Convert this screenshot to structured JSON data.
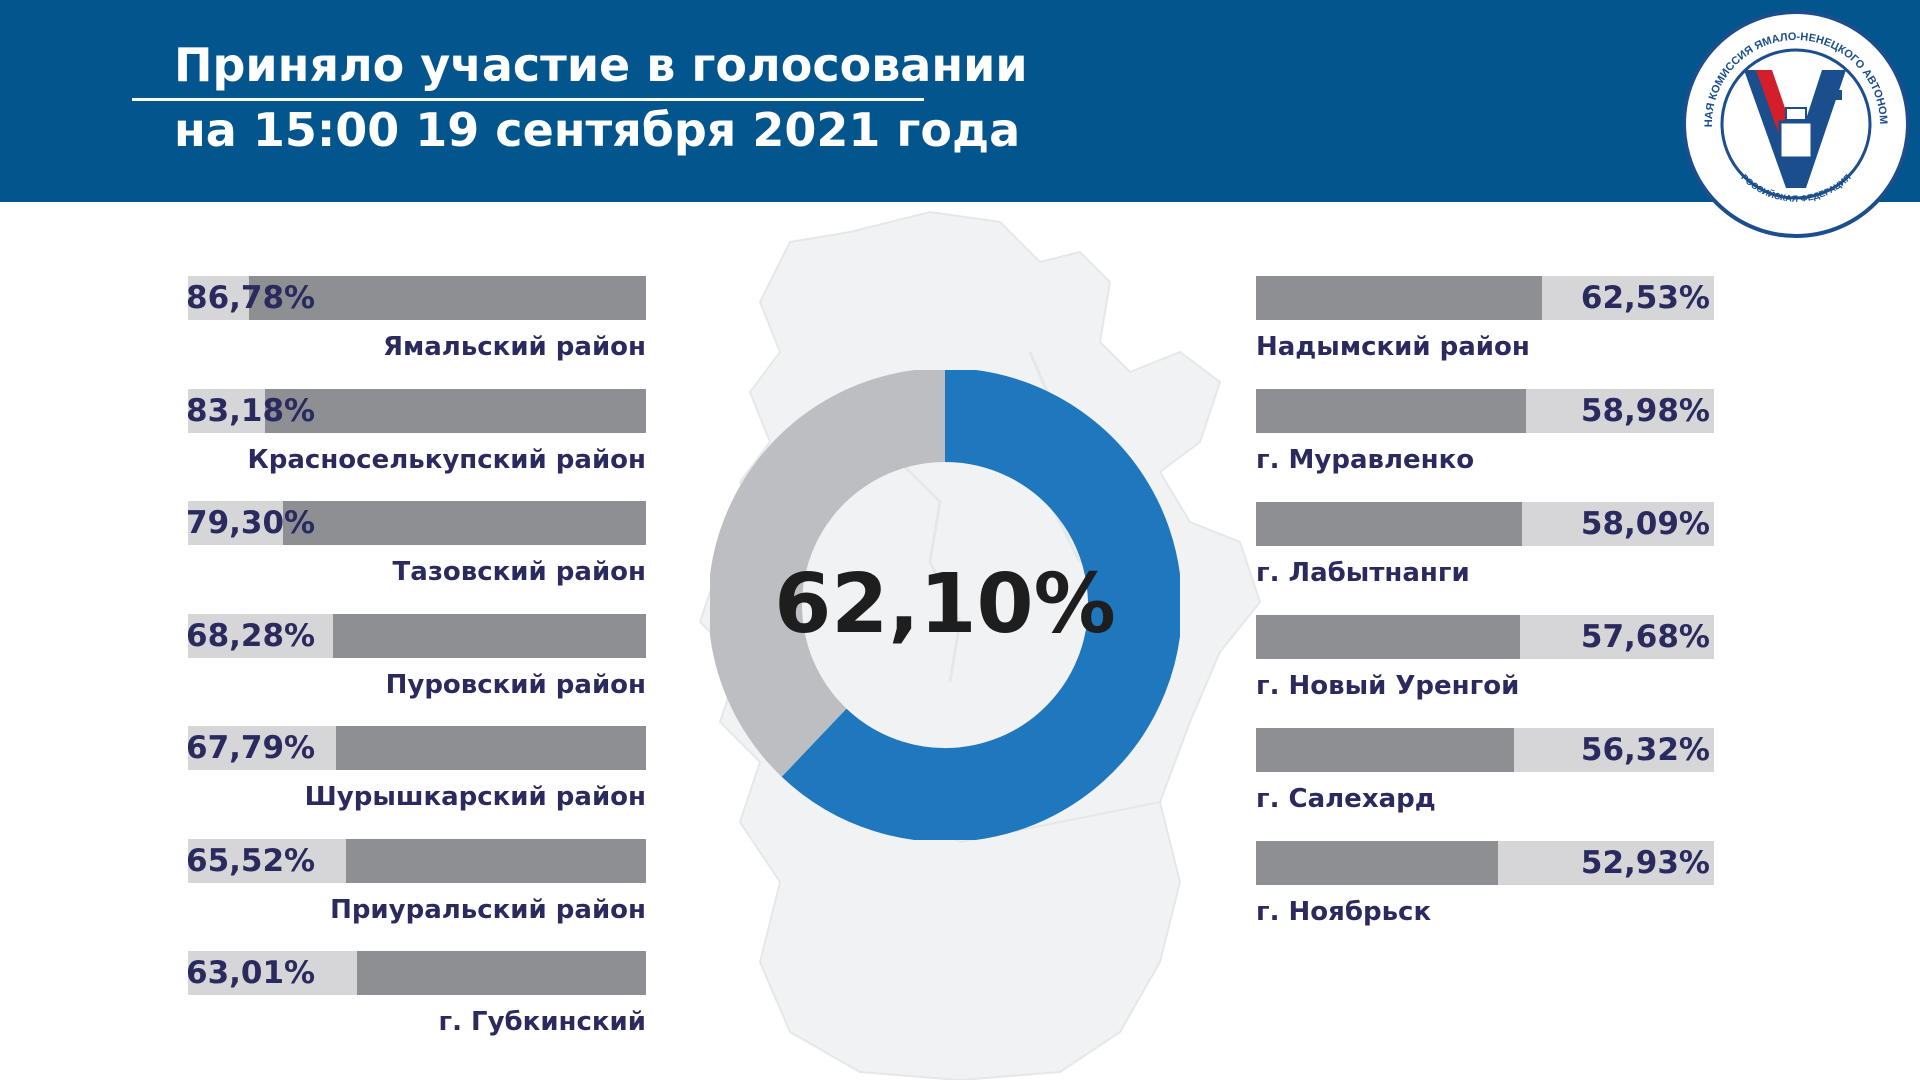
{
  "header": {
    "title_line1": "Приняло участие в голосовании",
    "title_line2": "на 15:00 19 сентября 2021 года"
  },
  "logo": {
    "ring_text_top": "ИЗБИРАТЕЛЬНАЯ КОМИССИЯ ЯМАЛО-НЕНЕЦКОГО АВТОНОМНОГО ОКРУГА",
    "ring_text_bottom": "РОССИЙСКАЯ ФЕДЕРАЦИЯ"
  },
  "colors": {
    "header_bg": "#02558d",
    "donut_blue": "#1f77be",
    "donut_grey": "#bdbec1",
    "bar_track": "#d6d6d8",
    "bar_fill": "#8e8f93",
    "text_dark": "#2b2a5e"
  },
  "chart_data": [
    {
      "type": "pie",
      "variant": "donut",
      "center_label": "62,10%",
      "values": [
        62.1,
        37.9
      ]
    },
    {
      "type": "bar",
      "orientation": "horizontal",
      "categories": [
        "Ямальский район",
        "Красноселькупский район",
        "Тазовский район",
        "Пуровский район",
        "Шурышкарский район",
        "Приуральский район",
        "г. Губкинский"
      ],
      "values": [
        86.78,
        83.18,
        79.3,
        68.28,
        67.79,
        65.52,
        63.01
      ],
      "value_labels": [
        "86,78%",
        "83,18%",
        "79,30%",
        "68,28%",
        "67,79%",
        "65,52%",
        "63,01%"
      ]
    },
    {
      "type": "bar",
      "orientation": "horizontal",
      "categories": [
        "Надымский район",
        "г. Муравленко",
        "г. Лабытнанги",
        "г. Новый Уренгой",
        "г. Салехард",
        "г. Ноябрьск"
      ],
      "values": [
        62.53,
        58.98,
        58.09,
        57.68,
        56.32,
        52.93
      ],
      "value_labels": [
        "62,53%",
        "58,98%",
        "58,09%",
        "57,68%",
        "56,32%",
        "52,93%"
      ]
    }
  ]
}
